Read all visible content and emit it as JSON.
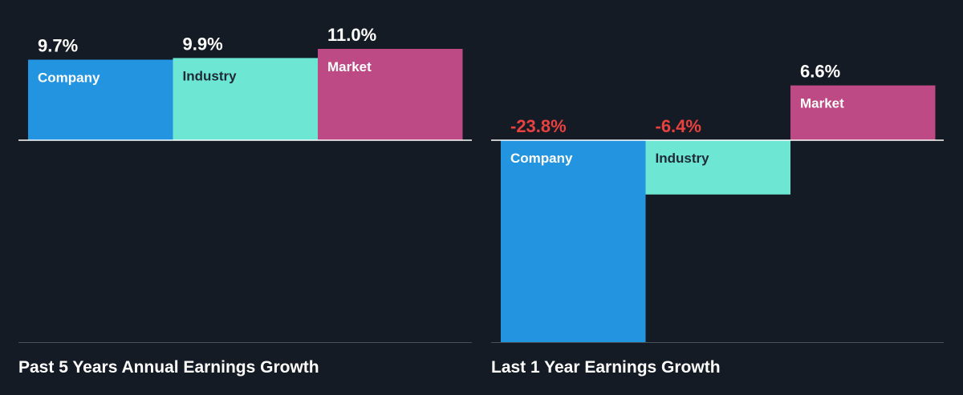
{
  "colors": {
    "background": "#151b24",
    "baseline": "#ffffff",
    "divider": "#4a5058",
    "title_text": "#ffffff",
    "positive_value": "#ffffff",
    "negative_value": "#e8413f",
    "company": "#2394e0",
    "industry": "#6de6d4",
    "market": "#bd4985",
    "company_label": "#ffffff",
    "industry_label": "#1f2a36",
    "market_label": "#ffffff"
  },
  "chart_data": [
    {
      "type": "bar",
      "title": "Past 5 Years Annual Earnings Growth",
      "categories": [
        "Company",
        "Industry",
        "Market"
      ],
      "values": [
        9.7,
        9.9,
        11.0
      ],
      "value_labels": [
        "9.7%",
        "9.9%",
        "11.0%"
      ],
      "unit": "%",
      "ylim": [
        -23.8,
        11.0
      ],
      "grid": false,
      "legend": "none"
    },
    {
      "type": "bar",
      "title": "Last 1 Year Earnings Growth",
      "categories": [
        "Company",
        "Industry",
        "Market"
      ],
      "values": [
        -23.8,
        -6.4,
        6.6
      ],
      "value_labels": [
        "-23.8%",
        "-6.4%",
        "6.6%"
      ],
      "unit": "%",
      "ylim": [
        -23.8,
        6.6
      ],
      "grid": false,
      "legend": "none"
    }
  ]
}
